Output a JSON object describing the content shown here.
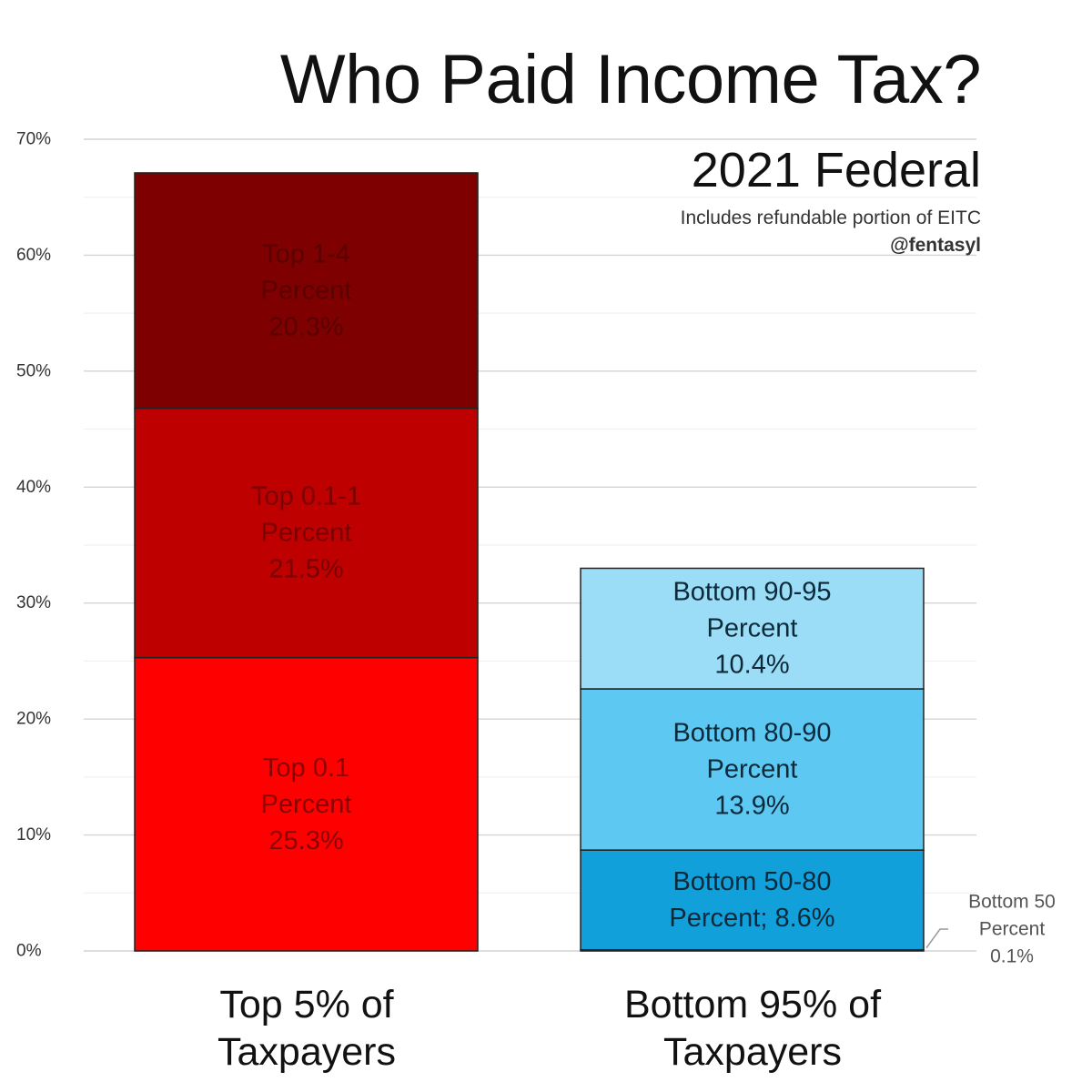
{
  "chart_data": {
    "type": "bar",
    "stacked": true,
    "title": "Who Paid Income Tax?",
    "subtitle": "2021 Federal",
    "note": "Includes refundable portion of EITC",
    "credit": "@fentasyl",
    "categories": [
      "Top 5% of\nTaxpayers",
      "Bottom 95% of\nTaxpayers"
    ],
    "ylim": [
      0,
      70
    ],
    "yticks": [
      0,
      10,
      20,
      30,
      40,
      50,
      60,
      70
    ],
    "ytick_labels": [
      "0%",
      "10%",
      "20%",
      "30%",
      "40%",
      "50%",
      "60%",
      "70%"
    ],
    "grid": true,
    "segments": [
      {
        "bar": 0,
        "value": 25.3,
        "label": "Top 0.1\nPercent\n25.3%",
        "color": "#fe0000",
        "text_color": "#8b0000"
      },
      {
        "bar": 0,
        "value": 21.5,
        "label": "Top 0.1-1\nPercent\n21.5%",
        "color": "#bf0000",
        "text_color": "#7a0000"
      },
      {
        "bar": 0,
        "value": 20.3,
        "label": "Top 1-4\nPercent\n20.3%",
        "color": "#7f0000",
        "text_color": "#5a0000"
      },
      {
        "bar": 1,
        "value": 0.1,
        "label": "",
        "color": "#0b7fb7",
        "text_color": "#0d2a3a"
      },
      {
        "bar": 1,
        "value": 8.6,
        "label": "Bottom 50-80\nPercent; 8.6%",
        "color": "#12a0db",
        "text_color": "#0d2a3a"
      },
      {
        "bar": 1,
        "value": 13.9,
        "label": "Bottom 80-90\nPercent\n13.9%",
        "color": "#5dc8f2",
        "text_color": "#0d2a3a"
      },
      {
        "bar": 1,
        "value": 10.4,
        "label": "Bottom 90-95\nPercent\n10.4%",
        "color": "#9bdcf7",
        "text_color": "#0d2a3a"
      }
    ],
    "annotation": {
      "label": "Bottom 50\nPercent\n0.1%",
      "bar": 1,
      "value": 0.1
    }
  }
}
